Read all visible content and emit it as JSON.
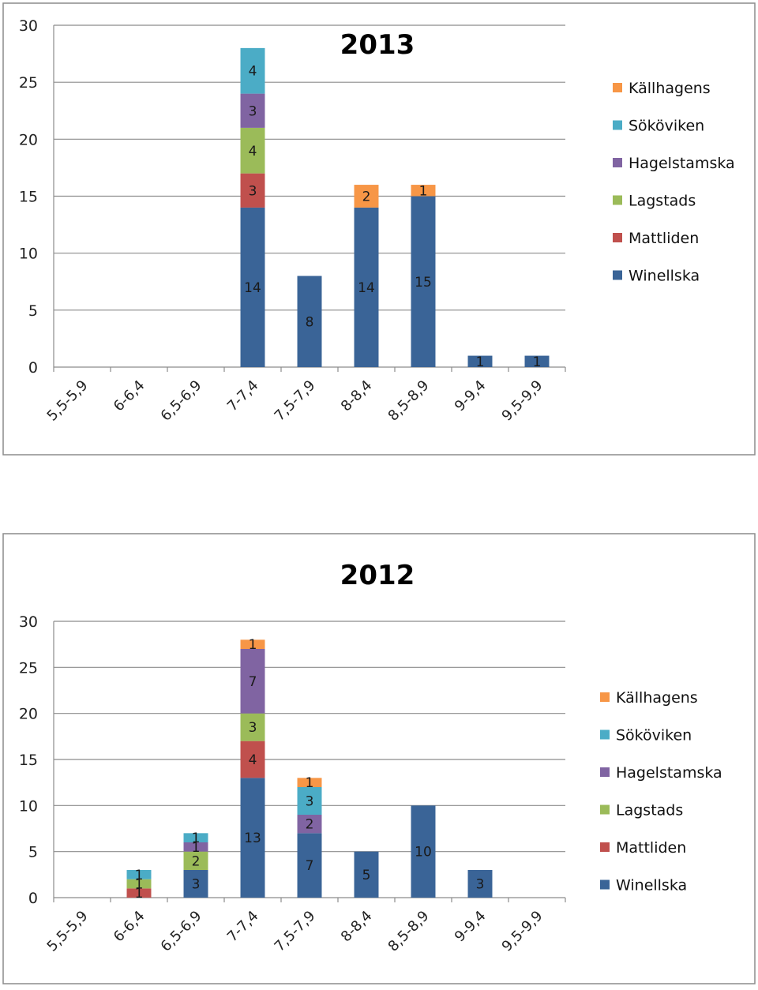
{
  "chart_data": [
    {
      "type": "bar",
      "stacked": true,
      "title": "2013",
      "categories": [
        "5,5-5,9",
        "6-6,4",
        "6,5-6,9",
        "7-7,4",
        "7,5-7,9",
        "8-8,4",
        "8,5-8,9",
        "9-9,4",
        "9,5-9,9"
      ],
      "series": [
        {
          "name": "Winellska",
          "color": "#3A6497",
          "values": [
            0,
            0,
            0,
            14,
            8,
            14,
            15,
            1,
            1
          ]
        },
        {
          "name": "Mattliden",
          "color": "#C0504D",
          "values": [
            0,
            0,
            0,
            3,
            0,
            0,
            0,
            0,
            0
          ]
        },
        {
          "name": "Lagstads",
          "color": "#9BBB59",
          "values": [
            0,
            0,
            0,
            4,
            0,
            0,
            0,
            0,
            0
          ]
        },
        {
          "name": "Hagelstamska",
          "color": "#8064A2",
          "values": [
            0,
            0,
            0,
            3,
            0,
            0,
            0,
            0,
            0
          ]
        },
        {
          "name": "Sököviken",
          "color": "#4BACC6",
          "values": [
            0,
            0,
            0,
            4,
            0,
            0,
            0,
            0,
            0
          ]
        },
        {
          "name": "Källhagens",
          "color": "#F79646",
          "values": [
            0,
            0,
            0,
            0,
            0,
            2,
            1,
            0,
            0
          ]
        }
      ],
      "yticks": [
        "0",
        "5",
        "10",
        "15",
        "20",
        "25",
        "30"
      ],
      "ylim": [
        0,
        30
      ],
      "grid": true,
      "legend": "right"
    },
    {
      "type": "bar",
      "stacked": true,
      "title": "2012",
      "categories": [
        "5,5-5,9",
        "6-6,4",
        "6,5-6,9",
        "7-7,4",
        "7,5-7,9",
        "8-8,4",
        "8,5-8,9",
        "9-9,4",
        "9,5-9,9"
      ],
      "series": [
        {
          "name": "Winellska",
          "color": "#3A6497",
          "values": [
            0,
            0,
            3,
            13,
            7,
            5,
            10,
            3,
            0
          ]
        },
        {
          "name": "Mattliden",
          "color": "#C0504D",
          "values": [
            0,
            1,
            0,
            4,
            0,
            0,
            0,
            0,
            0
          ]
        },
        {
          "name": "Lagstads",
          "color": "#9BBB59",
          "values": [
            0,
            1,
            2,
            3,
            0,
            0,
            0,
            0,
            0
          ]
        },
        {
          "name": "Hagelstamska",
          "color": "#8064A2",
          "values": [
            0,
            0,
            1,
            7,
            2,
            0,
            0,
            0,
            0
          ]
        },
        {
          "name": "Sököviken",
          "color": "#4BACC6",
          "values": [
            0,
            1,
            1,
            0,
            3,
            0,
            0,
            0,
            0
          ]
        },
        {
          "name": "Källhagens",
          "color": "#F79646",
          "values": [
            0,
            0,
            0,
            1,
            1,
            0,
            0,
            0,
            0
          ]
        }
      ],
      "yticks": [
        "0",
        "5",
        "10",
        "15",
        "20",
        "25",
        "30"
      ],
      "ylim": [
        0,
        30
      ],
      "grid": true,
      "legend": "right"
    }
  ]
}
